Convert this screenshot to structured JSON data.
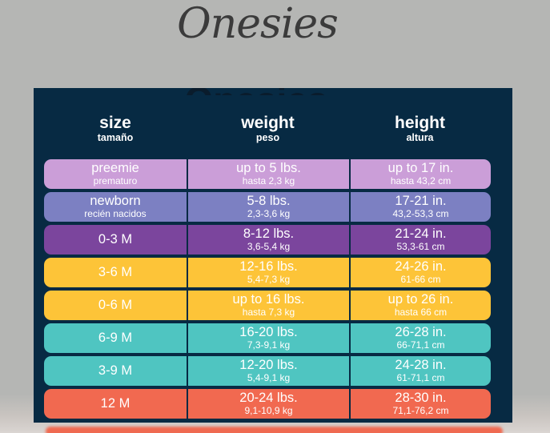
{
  "page": {
    "script_title": "Onesies",
    "hidden_title": "Onesies"
  },
  "colors": {
    "background": "#b5b6b4",
    "board_navy": "#072a43",
    "title_gray": "#3b3b3b",
    "row_lavender": "#cb9ed8",
    "row_periwinkle": "#7c80c2",
    "row_purple": "#7b459d",
    "row_yellow": "#fdc438",
    "row_teal": "#4fc5c1",
    "row_coral": "#f16950"
  },
  "chart_data": {
    "type": "table",
    "title": "Onesies",
    "columns": [
      {
        "label": "size",
        "sublabel": "tamaño"
      },
      {
        "label": "weight",
        "sublabel": "peso"
      },
      {
        "label": "height",
        "sublabel": "altura"
      }
    ],
    "rows": [
      {
        "size": "preemie",
        "size_sub": "prematuro",
        "weight": "up to 5 lbs.",
        "weight_sub": "hasta 2,3 kg",
        "height": "up to 17 in.",
        "height_sub": "hasta 43,2 cm",
        "color": "#cb9ed8"
      },
      {
        "size": "newborn",
        "size_sub": "recién nacidos",
        "weight": "5-8 lbs.",
        "weight_sub": "2,3-3,6 kg",
        "height": "17-21 in.",
        "height_sub": "43,2-53,3 cm",
        "color": "#7c80c2"
      },
      {
        "size": "0-3 M",
        "size_sub": "",
        "weight": "8-12 lbs.",
        "weight_sub": "3,6-5,4 kg",
        "height": "21-24 in.",
        "height_sub": "53,3-61 cm",
        "color": "#7b459d"
      },
      {
        "size": "3-6 M",
        "size_sub": "",
        "weight": "12-16 lbs.",
        "weight_sub": "5,4-7,3 kg",
        "height": "24-26 in.",
        "height_sub": "61-66 cm",
        "color": "#fdc438"
      },
      {
        "size": "0-6 M",
        "size_sub": "",
        "weight": "up to 16 lbs.",
        "weight_sub": "hasta 7,3 kg",
        "height": "up to 26 in.",
        "height_sub": "hasta 66 cm",
        "color": "#fdc438"
      },
      {
        "size": "6-9 M",
        "size_sub": "",
        "weight": "16-20 lbs.",
        "weight_sub": "7,3-9,1 kg",
        "height": "26-28 in.",
        "height_sub": "66-71,1 cm",
        "color": "#4fc5c1"
      },
      {
        "size": "3-9 M",
        "size_sub": "",
        "weight": "12-20 lbs.",
        "weight_sub": "5,4-9,1 kg",
        "height": "24-28 in.",
        "height_sub": "61-71,1 cm",
        "color": "#4fc5c1"
      },
      {
        "size": "12 M",
        "size_sub": "",
        "weight": "20-24 lbs.",
        "weight_sub": "9,1-10,9 kg",
        "height": "28-30 in.",
        "height_sub": "71,1-76,2 cm",
        "color": "#f16950"
      }
    ]
  }
}
